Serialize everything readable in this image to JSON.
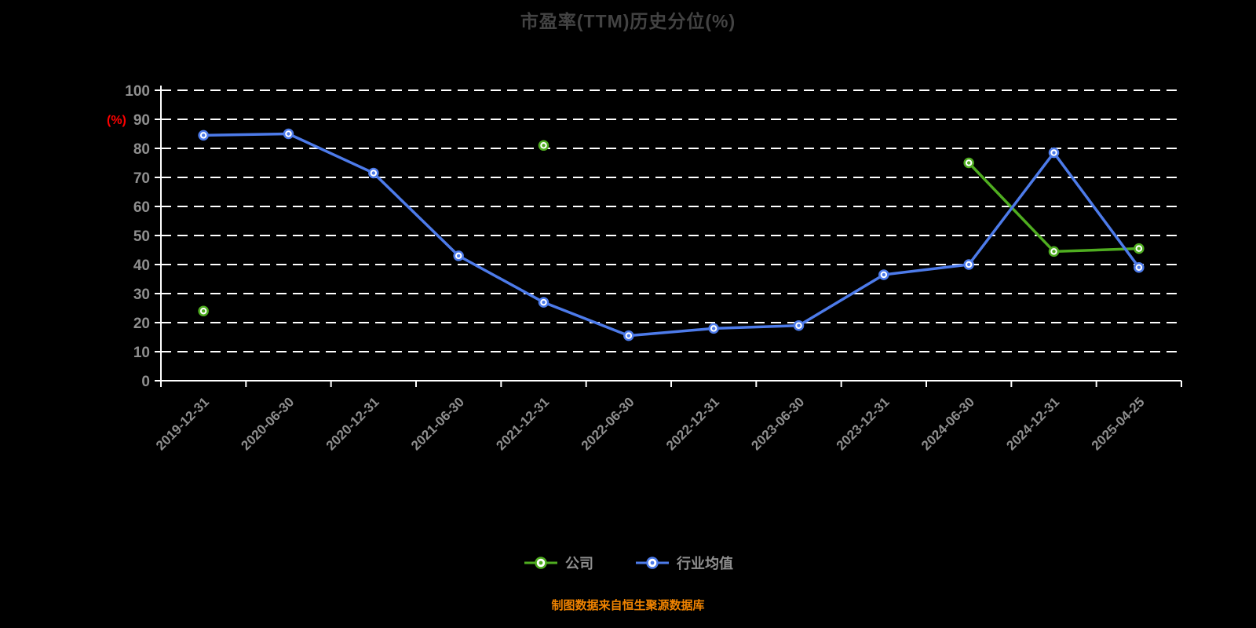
{
  "title": {
    "text": "市盈率(TTM)历史分位(%)"
  },
  "y_axis": {
    "unit_label": "(%)"
  },
  "legend": {
    "items": [
      {
        "label": "公司",
        "color": "#4fad20"
      },
      {
        "label": "行业均值",
        "color": "#4d7bea"
      }
    ]
  },
  "footer": {
    "text": "制图数据来自恒生聚源数据库"
  },
  "colors": {
    "background": "#000000",
    "axis_line": "#ffffff",
    "gridline": "#ffffff",
    "tick_label": "#8f8f8f",
    "title_text": "#434343",
    "y_unit_label": "#ff0000",
    "footer_text": "#f08300",
    "company_series": "#4fad20",
    "industry_series": "#4d7bea"
  },
  "chart_data": {
    "type": "line",
    "title": "市盈率(TTM)历史分位(%)",
    "categories": [
      "2019-12-31",
      "2020-06-30",
      "2020-12-31",
      "2021-06-30",
      "2021-12-31",
      "2022-06-30",
      "2022-12-31",
      "2023-06-30",
      "2023-12-31",
      "2024-06-30",
      "2024-12-31",
      "2025-04-25"
    ],
    "series": [
      {
        "name": "公司",
        "color": "#4fad20",
        "values": [
          24,
          null,
          null,
          null,
          81,
          null,
          null,
          null,
          null,
          75,
          44.5,
          45.5
        ]
      },
      {
        "name": "行业均值",
        "color": "#4d7bea",
        "values": [
          84.5,
          85,
          71.5,
          43,
          27,
          15.5,
          18,
          19,
          36.5,
          40,
          78.5,
          39
        ]
      }
    ],
    "xlabel": "",
    "ylabel": "(%)",
    "ylim": [
      0,
      100
    ],
    "y_tick_step": 10,
    "grid": "horizontal-dashed",
    "legend_position": "bottom",
    "x_label_rotation": 45
  }
}
